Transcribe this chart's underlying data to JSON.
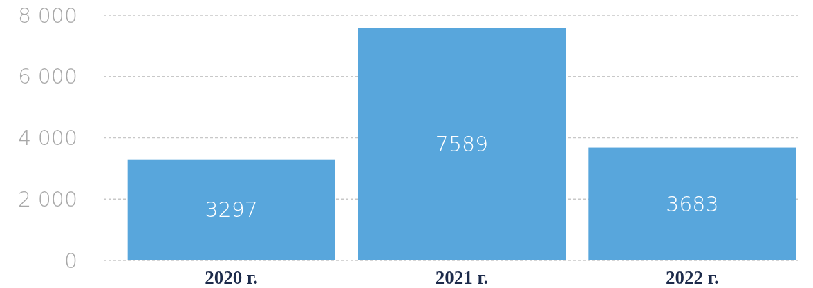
{
  "chart_data": {
    "type": "bar",
    "categories": [
      "2020 г.",
      "2021 г.",
      "2022 г."
    ],
    "values": [
      3297,
      7589,
      3683
    ],
    "color": "#58a6dc",
    "ylim": [
      0,
      8000
    ],
    "yticks": [
      {
        "value": 0,
        "label": "0"
      },
      {
        "value": 2000,
        "label": "2 000"
      },
      {
        "value": 4000,
        "label": "4 000"
      },
      {
        "value": 6000,
        "label": "6 000"
      },
      {
        "value": 8000,
        "label": "8 000"
      }
    ],
    "grid": "y",
    "data_labels": true
  }
}
